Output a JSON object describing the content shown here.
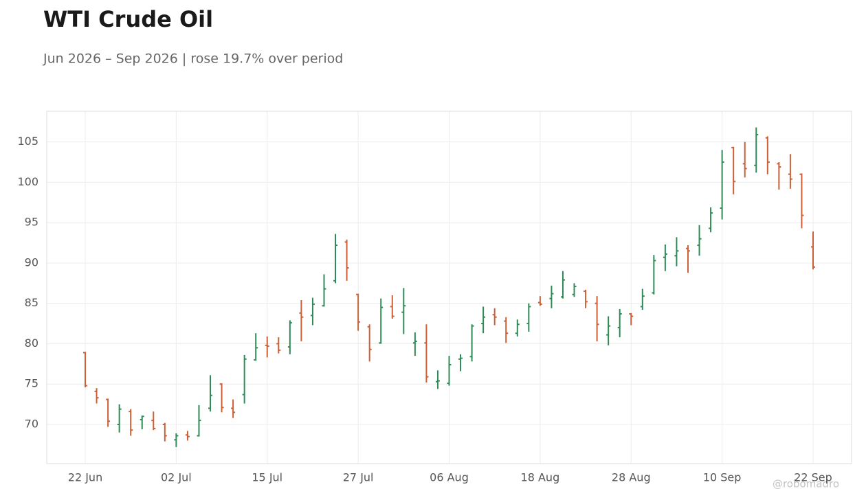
{
  "chart_data": {
    "type": "ohlc",
    "title": "WTI Crude Oil",
    "subtitle": "Jun 2026 – Sep 2026 | rose 19.7% over period",
    "watermark": "@robomadro",
    "categories": [
      "22 Jun",
      null,
      null,
      null,
      null,
      null,
      null,
      null,
      "02 Jul",
      null,
      null,
      null,
      null,
      null,
      null,
      null,
      "15 Jul",
      null,
      null,
      null,
      null,
      null,
      null,
      null,
      "27 Jul",
      null,
      null,
      null,
      null,
      null,
      null,
      null,
      "06 Aug",
      null,
      null,
      null,
      null,
      null,
      null,
      null,
      "18 Aug",
      null,
      null,
      null,
      null,
      null,
      null,
      null,
      "28 Aug",
      null,
      null,
      null,
      null,
      null,
      null,
      null,
      "10 Sep",
      null,
      null,
      null,
      null,
      null,
      null,
      null,
      "22 Sep"
    ],
    "open": [
      78.9,
      74.1,
      73.1,
      70.0,
      71.6,
      70.6,
      70.5,
      70.0,
      68.1,
      68.7,
      68.6,
      72.0,
      75.0,
      72.0,
      73.7,
      78.0,
      79.8,
      80.0,
      79.6,
      83.8,
      83.5,
      84.7,
      87.8,
      92.6,
      86.1,
      82.1,
      80.1,
      84.6,
      83.9,
      80.1,
      80.1,
      75.3,
      75.1,
      78.1,
      78.4,
      82.5,
      83.6,
      82.8,
      81.3,
      82.5,
      85.1,
      85.6,
      85.8,
      86.1,
      86.5,
      85.0,
      81.1,
      82.0,
      83.7,
      84.6,
      86.3,
      90.7,
      90.9,
      91.8,
      92.2,
      94.3,
      96.8,
      104.3,
      102.3,
      102.1,
      105.5,
      102.3,
      101.0,
      101.0,
      92.0
    ],
    "high": [
      79.0,
      74.5,
      73.2,
      72.5,
      71.9,
      71.1,
      71.6,
      70.2,
      68.9,
      69.2,
      72.4,
      76.1,
      75.1,
      73.1,
      78.6,
      81.3,
      80.9,
      80.8,
      82.9,
      85.4,
      85.7,
      88.6,
      93.6,
      92.9,
      86.2,
      82.4,
      85.6,
      86.0,
      86.9,
      81.4,
      82.4,
      76.7,
      78.5,
      78.7,
      82.4,
      84.6,
      84.4,
      83.3,
      83.0,
      85.0,
      85.9,
      87.2,
      89.0,
      87.5,
      86.7,
      85.9,
      83.4,
      84.3,
      83.8,
      86.8,
      91.0,
      92.3,
      93.2,
      92.2,
      94.7,
      96.9,
      104.0,
      104.4,
      105.0,
      106.8,
      105.7,
      102.5,
      103.5,
      101.1,
      93.9
    ],
    "low": [
      74.6,
      72.6,
      69.7,
      69.0,
      68.6,
      69.4,
      69.3,
      67.9,
      67.2,
      68.0,
      68.5,
      71.6,
      71.5,
      70.8,
      72.6,
      77.9,
      78.3,
      78.8,
      78.7,
      80.3,
      82.3,
      84.6,
      87.5,
      87.8,
      81.6,
      77.8,
      80.0,
      83.1,
      81.2,
      78.5,
      75.2,
      74.4,
      74.8,
      76.6,
      77.8,
      81.3,
      82.3,
      80.1,
      80.9,
      81.5,
      84.7,
      84.4,
      85.6,
      85.8,
      84.4,
      80.3,
      79.8,
      80.8,
      82.3,
      84.2,
      86.1,
      89.0,
      89.6,
      88.8,
      90.9,
      93.8,
      95.4,
      98.5,
      100.6,
      101.2,
      101.0,
      99.1,
      99.2,
      94.3,
      89.2
    ],
    "close": [
      74.8,
      73.3,
      70.4,
      71.9,
      69.3,
      71.0,
      69.5,
      68.6,
      68.6,
      68.5,
      70.5,
      73.6,
      72.1,
      71.5,
      78.1,
      79.5,
      79.7,
      79.2,
      82.6,
      83.3,
      84.9,
      86.8,
      92.2,
      89.4,
      82.7,
      79.3,
      84.5,
      83.4,
      84.7,
      80.3,
      75.9,
      75.4,
      77.4,
      78.2,
      82.2,
      83.3,
      83.3,
      81.3,
      82.4,
      84.6,
      84.9,
      86.2,
      87.9,
      87.1,
      85.2,
      82.4,
      82.2,
      83.7,
      83.4,
      85.9,
      90.3,
      91.1,
      91.5,
      91.5,
      93.0,
      96.2,
      102.5,
      100.1,
      101.7,
      105.9,
      102.5,
      101.9,
      100.4,
      95.9,
      89.5
    ],
    "up_color": "#2e8b57",
    "down_color": "#cd5f37",
    "ylim": [
      65.15,
      108.8
    ],
    "yticks": [
      70,
      75,
      80,
      85,
      90,
      95,
      100,
      105
    ],
    "grid": true
  }
}
